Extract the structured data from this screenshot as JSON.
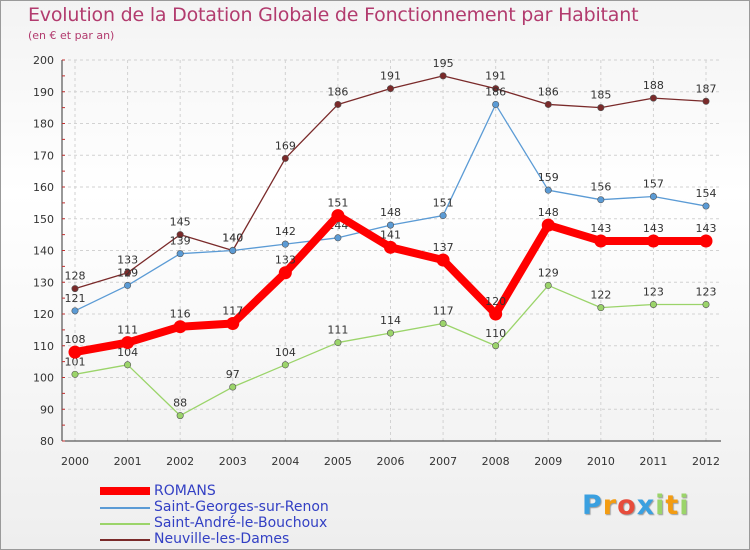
{
  "chart_data": {
    "type": "line",
    "title": "Evolution de la Dotation Globale de Fonctionnement par Habitant",
    "subtitle": "(en € et par an)",
    "x": [
      "2000",
      "2001",
      "2002",
      "2003",
      "2004",
      "2005",
      "2006",
      "2007",
      "2008",
      "2009",
      "2010",
      "2011",
      "2012"
    ],
    "ylim": [
      80,
      200
    ],
    "yticks": [
      "80",
      "90",
      "100",
      "110",
      "120",
      "130",
      "140",
      "150",
      "160",
      "170",
      "180",
      "190",
      "200"
    ],
    "grid": true,
    "legend_position": "bottom-left",
    "series": [
      {
        "name": "Neuville-les-Dames",
        "color": "#7a2a2a",
        "values": [
          128,
          133,
          145,
          140,
          169,
          186,
          191,
          195,
          191,
          186,
          185,
          188,
          187
        ],
        "labels": [
          "128",
          "133",
          "145",
          "140",
          "169",
          "186",
          "191",
          "195",
          "191",
          "186",
          "185",
          "188",
          "187"
        ]
      },
      {
        "name": "Saint-Georges-sur-Renon",
        "color": "#5b9bd5",
        "values": [
          121,
          129,
          139,
          140,
          142,
          144,
          148,
          151,
          186,
          159,
          156,
          157,
          154
        ],
        "labels": [
          "121",
          "129",
          "139",
          "140",
          "142",
          "144",
          "148",
          "151",
          "186",
          "159",
          "156",
          "157",
          "154"
        ]
      },
      {
        "name": "Saint-André-le-Bouchoux",
        "color": "#9bd46a",
        "values": [
          101,
          104,
          88,
          97,
          104,
          111,
          114,
          117,
          110,
          129,
          122,
          123,
          123
        ],
        "labels": [
          "101",
          "104",
          "88",
          "97",
          "104",
          "111",
          "114",
          "117",
          "110",
          "129",
          "122",
          "123",
          "123"
        ]
      },
      {
        "name": "ROMANS",
        "color": "#ff0000",
        "values": [
          108,
          111,
          116,
          117,
          133,
          151,
          141,
          137,
          120,
          148,
          143,
          143,
          143
        ],
        "labels": [
          "108",
          "111",
          "116",
          "117",
          "133",
          "151",
          "141",
          "137",
          "120",
          "148",
          "143",
          "143",
          "143"
        ]
      }
    ],
    "legend": [
      "ROMANS",
      "Saint-Georges-sur-Renon",
      "Saint-André-le-Bouchoux",
      "Neuville-les-Dames"
    ]
  },
  "logo": {
    "letters": [
      "P",
      "r",
      "o",
      "x",
      "i",
      "t",
      "i"
    ],
    "colors": [
      "#3aa0e0",
      "#f39c12",
      "#e74c3c",
      "#3aa0e0",
      "#9bd46a",
      "#f39c12",
      "#9bd46a"
    ]
  }
}
